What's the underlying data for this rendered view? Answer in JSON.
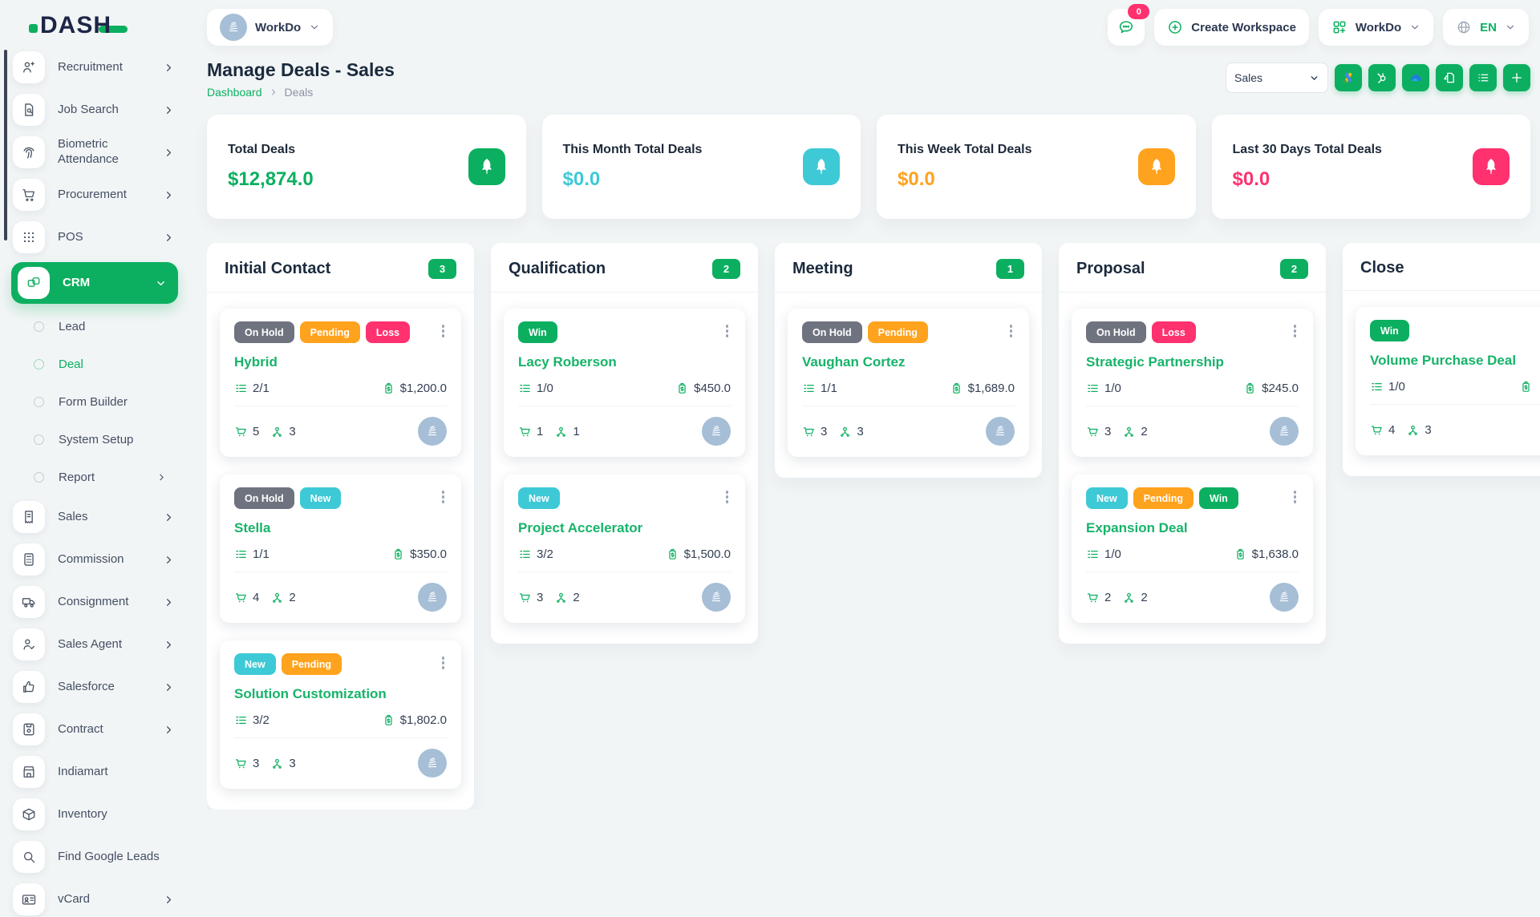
{
  "app": {
    "logo_text": "DASH"
  },
  "topbar": {
    "workspace": {
      "label": "WorkDo"
    },
    "messages_badge": "0",
    "create_workspace_label": "Create Workspace",
    "workdo_menu_label": "WorkDo",
    "language_code": "EN"
  },
  "sidebar": {
    "items_before_crm": [
      {
        "label": "Recruitment",
        "icon": "person-plus-icon",
        "chevron": true
      },
      {
        "label": "Job Search",
        "icon": "document-search-icon",
        "chevron": true
      },
      {
        "label": "Biometric Attendance",
        "icon": "fingerprint-icon",
        "chevron": true
      },
      {
        "label": "Procurement",
        "icon": "cart-arrow-icon",
        "chevron": true
      },
      {
        "label": "POS",
        "icon": "grid-dots-icon",
        "chevron": true
      }
    ],
    "crm": {
      "label": "CRM",
      "icon": "overlapping-squares-icon"
    },
    "crm_children": [
      {
        "label": "Lead",
        "active": false,
        "chevron": false
      },
      {
        "label": "Deal",
        "active": true,
        "chevron": false
      },
      {
        "label": "Form Builder",
        "active": false,
        "chevron": false
      },
      {
        "label": "System Setup",
        "active": false,
        "chevron": false
      },
      {
        "label": "Report",
        "active": false,
        "chevron": true
      }
    ],
    "items_after_crm": [
      {
        "label": "Sales",
        "icon": "invoice-icon",
        "chevron": true
      },
      {
        "label": "Commission",
        "icon": "calculator-icon",
        "chevron": true
      },
      {
        "label": "Consignment",
        "icon": "truck-icon",
        "chevron": true
      },
      {
        "label": "Sales Agent",
        "icon": "person-check-icon",
        "chevron": true
      },
      {
        "label": "Salesforce",
        "icon": "thumbs-up-icon",
        "chevron": true
      },
      {
        "label": "Contract",
        "icon": "contract-document-icon",
        "chevron": true
      },
      {
        "label": "Indiamart",
        "icon": "storefront-icon",
        "chevron": false
      },
      {
        "label": "Inventory",
        "icon": "box-icon",
        "chevron": false
      },
      {
        "label": "Find Google Leads",
        "icon": "search-icon",
        "chevron": false
      },
      {
        "label": "vCard",
        "icon": "id-card-icon",
        "chevron": true
      }
    ]
  },
  "page": {
    "title": "Manage Deals - Sales",
    "breadcrumb": {
      "0": "Dashboard",
      "1": "Deals"
    },
    "pipeline_select_value": "Sales",
    "action_icons": [
      "google-ads-icon",
      "hubspot-icon",
      "onedrive-icon",
      "document-sync-icon",
      "list-view-icon",
      "plus-icon"
    ]
  },
  "stats": [
    {
      "label": "Total Deals",
      "value": "$12,874.0",
      "color": "#0CAF60"
    },
    {
      "label": "This Month Total Deals",
      "value": "$0.0",
      "color": "#3EC9D6"
    },
    {
      "label": "This Week Total Deals",
      "value": "$0.0",
      "color": "#FFA21D"
    },
    {
      "label": "Last 30 Days Total Deals",
      "value": "$0.0",
      "color": "#FF316F"
    }
  ],
  "status_colors": {
    "On Hold": "#6F737F",
    "Pending": "#FFA21D",
    "Loss": "#FF316F",
    "Win": "#0CAF60",
    "New": "#3EC9D6"
  },
  "board": {
    "columns": [
      {
        "title": "Initial Contact",
        "count": "3",
        "cards": [
          {
            "name": "Hybrid",
            "badges": [
              "On Hold",
              "Pending",
              "Loss"
            ],
            "tasks": "2/1",
            "value": "$1,200.0",
            "products": "5",
            "users": "3"
          },
          {
            "name": "Stella",
            "badges": [
              "On Hold",
              "New"
            ],
            "tasks": "1/1",
            "value": "$350.0",
            "products": "4",
            "users": "2"
          },
          {
            "name": "Solution Customization",
            "badges": [
              "New",
              "Pending"
            ],
            "tasks": "3/2",
            "value": "$1,802.0",
            "products": "3",
            "users": "3"
          }
        ]
      },
      {
        "title": "Qualification",
        "count": "2",
        "cards": [
          {
            "name": "Lacy Roberson",
            "badges": [
              "Win"
            ],
            "tasks": "1/0",
            "value": "$450.0",
            "products": "1",
            "users": "1"
          },
          {
            "name": "Project Accelerator",
            "badges": [
              "New"
            ],
            "tasks": "3/2",
            "value": "$1,500.0",
            "products": "3",
            "users": "2"
          }
        ]
      },
      {
        "title": "Meeting",
        "count": "1",
        "cards": [
          {
            "name": "Vaughan Cortez",
            "badges": [
              "On Hold",
              "Pending"
            ],
            "tasks": "1/1",
            "value": "$1,689.0",
            "products": "3",
            "users": "3"
          }
        ]
      },
      {
        "title": "Proposal",
        "count": "2",
        "cards": [
          {
            "name": "Strategic Partnership",
            "badges": [
              "On Hold",
              "Loss"
            ],
            "tasks": "1/0",
            "value": "$245.0",
            "products": "3",
            "users": "2"
          },
          {
            "name": "Expansion Deal",
            "badges": [
              "New",
              "Pending",
              "Win"
            ],
            "tasks": "1/0",
            "value": "$1,638.0",
            "products": "2",
            "users": "2"
          }
        ]
      },
      {
        "title": "Close",
        "count": "",
        "cards": [
          {
            "name": "Volume Purchase Deal",
            "badges": [
              "Win"
            ],
            "tasks": "1/0",
            "value": "",
            "products": "4",
            "users": "3"
          }
        ]
      }
    ]
  }
}
